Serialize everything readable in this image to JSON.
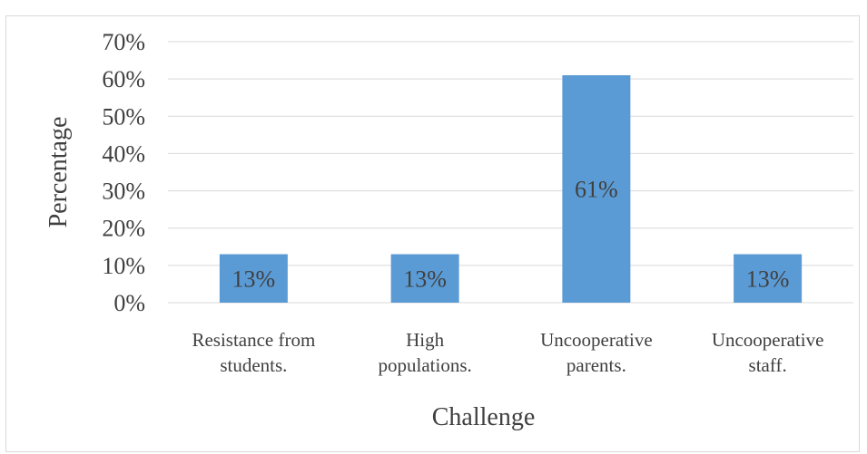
{
  "chart_data": {
    "type": "bar",
    "title": "",
    "xlabel": "Challenge",
    "ylabel": "Percentage",
    "categories": [
      [
        "Resistance from",
        "students."
      ],
      [
        "High",
        "populations."
      ],
      [
        "Uncooperative",
        "parents."
      ],
      [
        "Uncooperative",
        "staff."
      ]
    ],
    "values": [
      13,
      13,
      61,
      13
    ],
    "data_labels": [
      "13%",
      "13%",
      "61%",
      "13%"
    ],
    "ylim": [
      0,
      70
    ],
    "yticks": [
      0,
      10,
      20,
      30,
      40,
      50,
      60,
      70
    ],
    "ytick_labels": [
      "0%",
      "10%",
      "20%",
      "30%",
      "40%",
      "50%",
      "60%",
      "70%"
    ],
    "grid": true,
    "legend": "none",
    "colors": {
      "bar": "#5b9bd5",
      "grid": "#d9d9d9",
      "text": "#404040"
    }
  }
}
